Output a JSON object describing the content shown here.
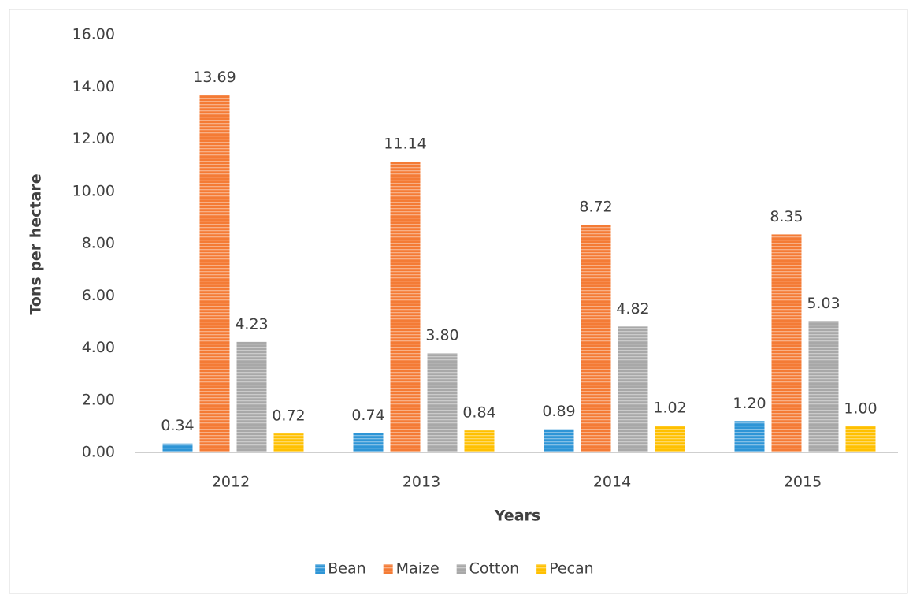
{
  "chart_data": {
    "type": "bar",
    "xlabel": "Years",
    "ylabel": "Tons per hectare",
    "categories": [
      "2012",
      "2013",
      "2014",
      "2015"
    ],
    "series": [
      {
        "name": "Bean",
        "color": "#2e95d6",
        "values": [
          0.34,
          0.74,
          0.89,
          1.2
        ],
        "value_labels": [
          "0.34",
          "0.74",
          "0.89",
          "1.20"
        ]
      },
      {
        "name": "Maize",
        "color": "#f47b35",
        "values": [
          13.69,
          11.14,
          8.72,
          8.35
        ],
        "value_labels": [
          "13.69",
          "11.14",
          "8.72",
          "8.35"
        ]
      },
      {
        "name": "Cotton",
        "color": "#a8a8a8",
        "values": [
          4.23,
          3.8,
          4.82,
          5.03
        ],
        "value_labels": [
          "4.23",
          "3.80",
          "4.82",
          "5.03"
        ]
      },
      {
        "name": "Pecan",
        "color": "#ffc000",
        "values": [
          0.72,
          0.84,
          1.02,
          1.0
        ],
        "value_labels": [
          "0.72",
          "0.84",
          "1.02",
          "1.00"
        ]
      }
    ],
    "ylim": [
      0,
      16
    ],
    "yticks": [
      {
        "value": 0,
        "label": "0.00"
      },
      {
        "value": 2,
        "label": "2.00"
      },
      {
        "value": 4,
        "label": "4.00"
      },
      {
        "value": 6,
        "label": "6.00"
      },
      {
        "value": 8,
        "label": "8.00"
      },
      {
        "value": 10,
        "label": "10.00"
      },
      {
        "value": 12,
        "label": "12.00"
      },
      {
        "value": 14,
        "label": "14.00"
      },
      {
        "value": 16,
        "label": "16.00"
      }
    ],
    "grid": false,
    "legend": "bottom"
  }
}
